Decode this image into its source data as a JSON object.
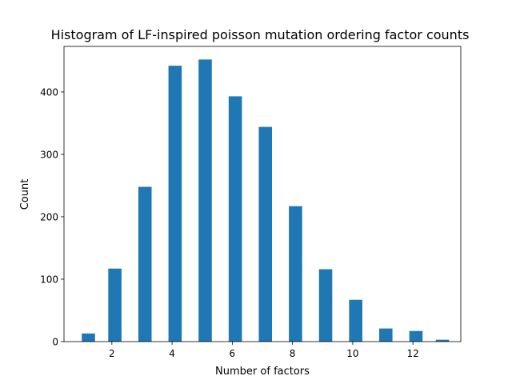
{
  "chart_data": {
    "type": "bar",
    "title": "Histogram of LF-inspired poisson mutation ordering factor counts",
    "xlabel": "Number of factors",
    "ylabel": "Count",
    "bar_color": "#1f77b4",
    "xlim": [
      0.41,
      13.59
    ],
    "ylim": [
      0,
      473
    ],
    "bar_width": 0.44,
    "grid": false,
    "legend": false,
    "x": [
      1.22,
      2.1,
      3.1,
      4.1,
      5.1,
      6.1,
      7.1,
      8.1,
      9.1,
      10.1,
      11.1,
      12.1,
      12.98
    ],
    "values": [
      13,
      117,
      248,
      442,
      452,
      393,
      344,
      217,
      116,
      67,
      21,
      17,
      3
    ],
    "xticks": [
      2,
      4,
      6,
      8,
      10,
      12
    ],
    "xtick_labels": [
      "2",
      "4",
      "6",
      "8",
      "10",
      "12"
    ],
    "yticks": [
      0,
      100,
      200,
      300,
      400
    ],
    "ytick_labels": [
      "0",
      "100",
      "200",
      "300",
      "400"
    ]
  }
}
